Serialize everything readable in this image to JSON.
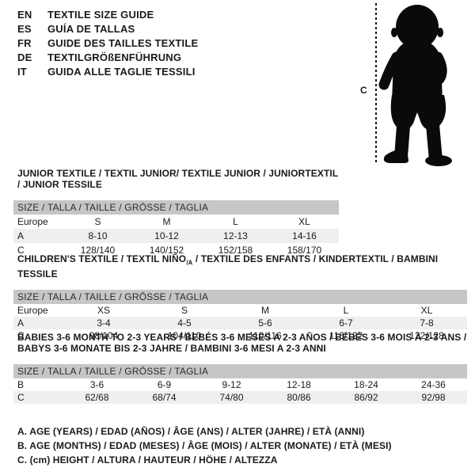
{
  "header": {
    "languages": [
      {
        "code": "EN",
        "title": "TEXTILE SIZE GUIDE"
      },
      {
        "code": "ES",
        "title": "GUÍA DE TALLAS"
      },
      {
        "code": "FR",
        "title": "GUIDE DES TAILLES TEXTILE"
      },
      {
        "code": "DE",
        "title": "TEXTILGRÖßENFÜHRUNG"
      },
      {
        "code": "IT",
        "title": "GUIDA ALLE TAGLIE TESSILI"
      }
    ]
  },
  "figure": {
    "height_label": "C",
    "silhouette": "baby-toddler-standing"
  },
  "colors": {
    "header_bar": "#c6c6c6",
    "row_alt": "#efefef",
    "text": "#1a1a1a",
    "silhouette": "#0a0a0a"
  },
  "tables": [
    {
      "name": "junior",
      "title_parts": [
        {
          "text": "JUNIOR TEXTILE / TEXTIL JUNIOR/ TEXTILE JUNIOR / JUNIORTEXTIL / JUNIOR TESSILE"
        }
      ],
      "size_header": "SIZE / TALLA / TAILLE / GRÖSSE / TAGLIA",
      "rows": [
        {
          "label": "Europe",
          "values": [
            "S",
            "M",
            "L",
            "XL"
          ]
        },
        {
          "label": "A",
          "values": [
            "8-10",
            "10-12",
            "12-13",
            "14-16"
          ]
        },
        {
          "label": "C",
          "values": [
            "128/140",
            "140/152",
            "152/158",
            "158/170"
          ]
        }
      ]
    },
    {
      "name": "children",
      "title_parts": [
        {
          "text": "CHILDREN'S TEXTILE / TEXTIL NIÑO"
        },
        {
          "text": "/A",
          "style": "sub"
        },
        {
          "text": " / TEXTILE DES ENFANTS / KINDERTEXTIL / BAMBINI TESSILE"
        }
      ],
      "size_header": "SIZE / TALLA / TAILLE / GRÖSSE / TAGLIA",
      "rows": [
        {
          "label": "Europe",
          "values": [
            "XS",
            "S",
            "M",
            "L",
            "XL"
          ]
        },
        {
          "label": "A",
          "values": [
            "3-4",
            "4-5",
            "5-6",
            "6-7",
            "7-8"
          ]
        },
        {
          "label": "C",
          "values": [
            "98/104",
            "104/110",
            "110/116",
            "116/122",
            "122/128"
          ]
        }
      ]
    },
    {
      "name": "babies",
      "title_parts": [
        {
          "text": "BABIES 3-6 MONTH TO 2-3 YEARS / BEBÉS 3-6 MESES A 2-3 AÑOS / BÉBÉS 3-6 MOIS À 2-3 ANS /"
        },
        {
          "style": "break"
        },
        {
          "text": "BABYS 3-6 MONATE BIS 2-3 JAHRE / BAMBINI 3-6 MESI A 2-3 ANNI"
        }
      ],
      "size_header": "SIZE / TALLA / TAILLE / GRÖSSE / TAGLIA",
      "rows": [
        {
          "label": "B",
          "values": [
            "3-6",
            "6-9",
            "9-12",
            "12-18",
            "18-24",
            "24-36"
          ]
        },
        {
          "label": "C",
          "values": [
            "62/68",
            "68/74",
            "74/80",
            "80/86",
            "86/92",
            "92/98"
          ]
        }
      ]
    }
  ],
  "footnotes": [
    "A. AGE (YEARS) / EDAD (AÑOS) / ÂGE (ANS) / ALTER (JAHRE) / ETÀ (ANNI)",
    "B. AGE (MONTHS) / EDAD (MESES) / ÂGE (MOIS) / ALTER (MONATE) / ETÀ (MESI)",
    "C. (cm) HEIGHT / ALTURA / HAUTEUR / HÖHE / ALTEZZA"
  ]
}
